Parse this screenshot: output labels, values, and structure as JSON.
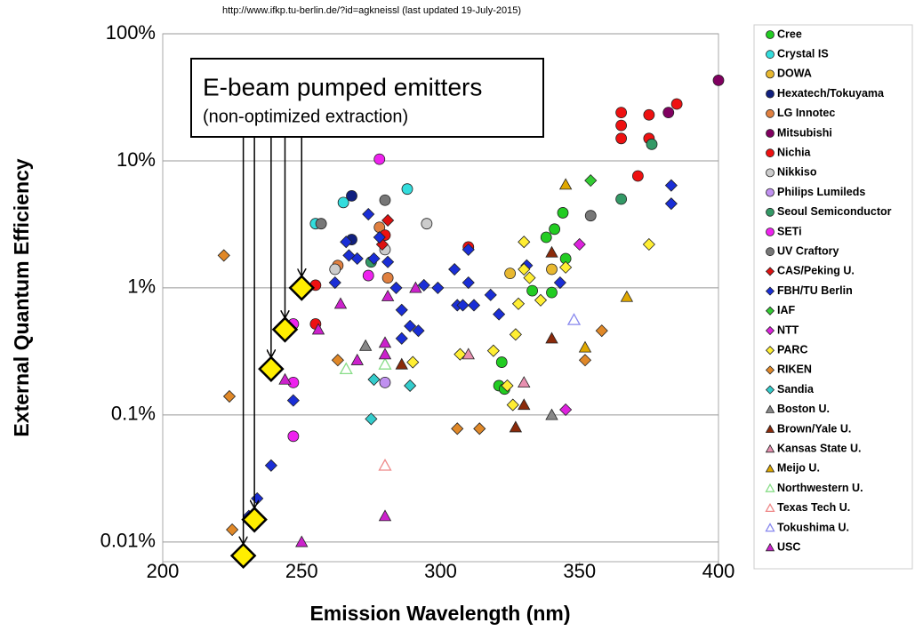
{
  "chart_data": {
    "type": "scatter",
    "source": "http://www.ifkp.tu-berlin.de/?id=agkneissl   (last updated 19-July-2015)",
    "x_label": "Emission Wavelength (nm)",
    "y_label": "External Quantum Efficiency",
    "xlim": [
      200,
      400
    ],
    "xticks": [
      200,
      250,
      300,
      350,
      400
    ],
    "ylim": [
      0.007,
      100
    ],
    "log_y": true,
    "grid": true,
    "yticks": [
      {
        "value": 100,
        "label": "100%"
      },
      {
        "value": 10,
        "label": "10%"
      },
      {
        "value": 1,
        "label": "1%"
      },
      {
        "value": 0.1,
        "label": "0.1%"
      },
      {
        "value": 0.01,
        "label": "0.01%"
      }
    ],
    "annotation": {
      "title": "E-beam pumped emitters",
      "subtitle": "(non-optimized extraction)"
    },
    "highlight": {
      "color": "#ffee00",
      "marker": "diamond",
      "x": [
        250,
        244,
        239,
        233,
        229
      ],
      "values": [
        1.0,
        0.47,
        0.23,
        0.015,
        0.0078
      ]
    },
    "series": [
      {
        "name": "Cree",
        "color": "#22cc22",
        "marker": "circle",
        "x": [
          338,
          341,
          344,
          345,
          333,
          340,
          322,
          321,
          323
        ],
        "values": [
          2.5,
          2.9,
          3.9,
          1.7,
          0.95,
          0.92,
          0.26,
          0.17,
          0.16
        ]
      },
      {
        "name": "Crystal IS",
        "color": "#33dddd",
        "marker": "circle",
        "x": [
          288,
          265,
          255
        ],
        "values": [
          6.0,
          4.7,
          3.2
        ]
      },
      {
        "name": "DOWA",
        "color": "#e8b830",
        "marker": "circle",
        "x": [
          325,
          340
        ],
        "values": [
          1.3,
          1.4
        ]
      },
      {
        "name": "Hexatech/Tokuyama",
        "color": "#102080",
        "marker": "circle",
        "x": [
          268,
          268
        ],
        "values": [
          5.3,
          2.4
        ]
      },
      {
        "name": "LG Innotec",
        "color": "#e08040",
        "marker": "circle",
        "x": [
          278,
          263,
          281
        ],
        "values": [
          3.0,
          1.5,
          1.2
        ]
      },
      {
        "name": "Mitsubishi",
        "color": "#800060",
        "marker": "circle",
        "x": [
          400,
          382
        ],
        "values": [
          43,
          24
        ]
      },
      {
        "name": "Nichia",
        "color": "#ee1111",
        "marker": "circle",
        "x": [
          365,
          365,
          365,
          375,
          375,
          385,
          371,
          310,
          255,
          255,
          280
        ],
        "values": [
          24,
          19,
          15,
          23,
          15,
          28,
          7.6,
          2.1,
          1.05,
          0.52,
          2.6
        ]
      },
      {
        "name": "Nikkiso",
        "color": "#cccccc",
        "marker": "circle",
        "x": [
          295,
          280,
          262
        ],
        "values": [
          3.2,
          2.0,
          1.4
        ]
      },
      {
        "name": "Philips Lumileds",
        "color": "#c090f0",
        "marker": "circle",
        "x": [
          280
        ],
        "values": [
          0.18
        ]
      },
      {
        "name": "Seoul Semiconductor",
        "color": "#339966",
        "marker": "circle",
        "x": [
          376,
          365,
          275
        ],
        "values": [
          13.5,
          5.0,
          1.6
        ]
      },
      {
        "name": "SETi",
        "color": "#ee22ee",
        "marker": "circle",
        "x": [
          278,
          274,
          247,
          247,
          247
        ],
        "values": [
          10.3,
          1.25,
          0.52,
          0.18,
          0.068
        ]
      },
      {
        "name": "UV Craftory",
        "color": "#777777",
        "marker": "circle",
        "x": [
          257,
          280,
          354
        ],
        "values": [
          3.2,
          4.9,
          3.7
        ]
      },
      {
        "name": "CAS/Peking U.",
        "color": "#dd1111",
        "marker": "diamond",
        "x": [
          281,
          279
        ],
        "values": [
          3.4,
          2.2
        ]
      },
      {
        "name": "FBH/TU Berlin",
        "color": "#1a2ed6",
        "marker": "diamond",
        "x": [
          274,
          278,
          266,
          270,
          262,
          267,
          276,
          281,
          284,
          286,
          289,
          292,
          286,
          294,
          299,
          305,
          306,
          308,
          310,
          312,
          318,
          321,
          331,
          343,
          310,
          383,
          383,
          247,
          239,
          234,
          231
        ],
        "values": [
          3.8,
          2.5,
          2.3,
          1.7,
          1.1,
          1.8,
          1.7,
          1.6,
          1.0,
          0.67,
          0.5,
          0.46,
          0.4,
          1.05,
          1.0,
          1.4,
          0.73,
          0.73,
          1.1,
          0.73,
          0.88,
          0.62,
          1.5,
          1.1,
          2.0,
          6.4,
          4.6,
          0.13,
          0.04,
          0.022,
          0.016
        ]
      },
      {
        "name": "IAF",
        "color": "#33cc33",
        "marker": "diamond",
        "x": [
          354
        ],
        "values": [
          7.0
        ]
      },
      {
        "name": "NTT",
        "color": "#dd22dd",
        "marker": "diamond",
        "x": [
          350,
          345
        ],
        "values": [
          2.2,
          0.11
        ]
      },
      {
        "name": "PARC",
        "color": "#ffee33",
        "marker": "diamond",
        "x": [
          330,
          330,
          332,
          328,
          336,
          345,
          375,
          327,
          319,
          307,
          290,
          324,
          326
        ],
        "values": [
          2.3,
          1.4,
          1.2,
          0.75,
          0.8,
          1.45,
          2.2,
          0.43,
          0.32,
          0.3,
          0.26,
          0.17,
          0.12
        ]
      },
      {
        "name": "RIKEN",
        "color": "#e08828",
        "marker": "diamond",
        "x": [
          222,
          263,
          352,
          358,
          306,
          314,
          225,
          224
        ],
        "values": [
          1.8,
          0.27,
          0.27,
          0.46,
          0.078,
          0.078,
          0.0125,
          0.14
        ]
      },
      {
        "name": "Sandia",
        "color": "#33cccc",
        "marker": "diamond",
        "x": [
          276,
          289,
          275
        ],
        "values": [
          0.19,
          0.17,
          0.093
        ]
      },
      {
        "name": "Boston U.",
        "color": "#888888",
        "marker": "triangle",
        "x": [
          273,
          340
        ],
        "values": [
          0.35,
          0.1
        ]
      },
      {
        "name": "Brown/Yale U.",
        "color": "#8b2a0a",
        "marker": "triangle",
        "x": [
          340,
          340,
          330,
          327,
          286
        ],
        "values": [
          1.9,
          0.4,
          0.12,
          0.08,
          0.25
        ]
      },
      {
        "name": "Kansas State U.",
        "color": "#e890b0",
        "marker": "triangle",
        "x": [
          310,
          330
        ],
        "values": [
          0.3,
          0.18
        ]
      },
      {
        "name": "Meijo U.",
        "color": "#e0a800",
        "marker": "triangle",
        "x": [
          345,
          367,
          352
        ],
        "values": [
          6.5,
          0.85,
          0.34
        ]
      },
      {
        "name": "Northwestern U.",
        "color": "#88dd88",
        "marker": "triangle",
        "open": true,
        "x": [
          266,
          280
        ],
        "values": [
          0.23,
          0.25
        ]
      },
      {
        "name": "Texas Tech U.",
        "color": "#ee8888",
        "marker": "triangle",
        "open": true,
        "x": [
          280
        ],
        "values": [
          0.04
        ]
      },
      {
        "name": "Tokushima U.",
        "color": "#8888ee",
        "marker": "triangle",
        "open": true,
        "x": [
          348
        ],
        "values": [
          0.56
        ]
      },
      {
        "name": "USC",
        "color": "#cc22cc",
        "marker": "triangle",
        "x": [
          256,
          264,
          270,
          281,
          280,
          280,
          291,
          280,
          250,
          244
        ],
        "values": [
          0.47,
          0.75,
          0.27,
          0.86,
          0.37,
          0.3,
          1.0,
          0.016,
          0.01,
          0.19
        ]
      }
    ]
  }
}
